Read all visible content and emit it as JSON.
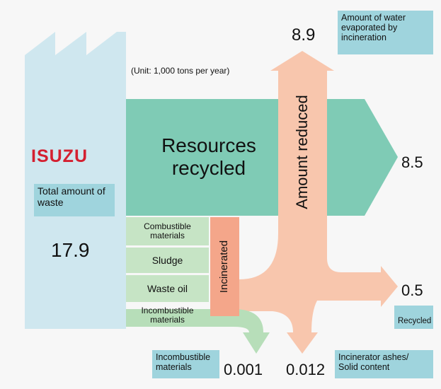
{
  "unit_note": "(Unit: 1,000 tons per year)",
  "logo": "ISUZU",
  "total": {
    "label": "Total amount of waste",
    "value": 17.9
  },
  "resources_recycled": {
    "label": "Resources recycled",
    "value": 8.5
  },
  "reduced": {
    "label": "Amount reduced",
    "value": 8.9,
    "note": "Amount of water evaporated by incineration"
  },
  "incinerated": {
    "label": "Incinerated"
  },
  "waste_types": [
    "Combustible materials",
    "Sludge",
    "Waste oil",
    "Incombustible materials"
  ],
  "recycled": {
    "label": "Recycled",
    "value": 0.5
  },
  "incombustible_out": {
    "label": "Incombustible materials",
    "value": 0.001
  },
  "ash_out": {
    "label": "Incinerator ashes/ Solid content",
    "value": 0.012
  }
}
